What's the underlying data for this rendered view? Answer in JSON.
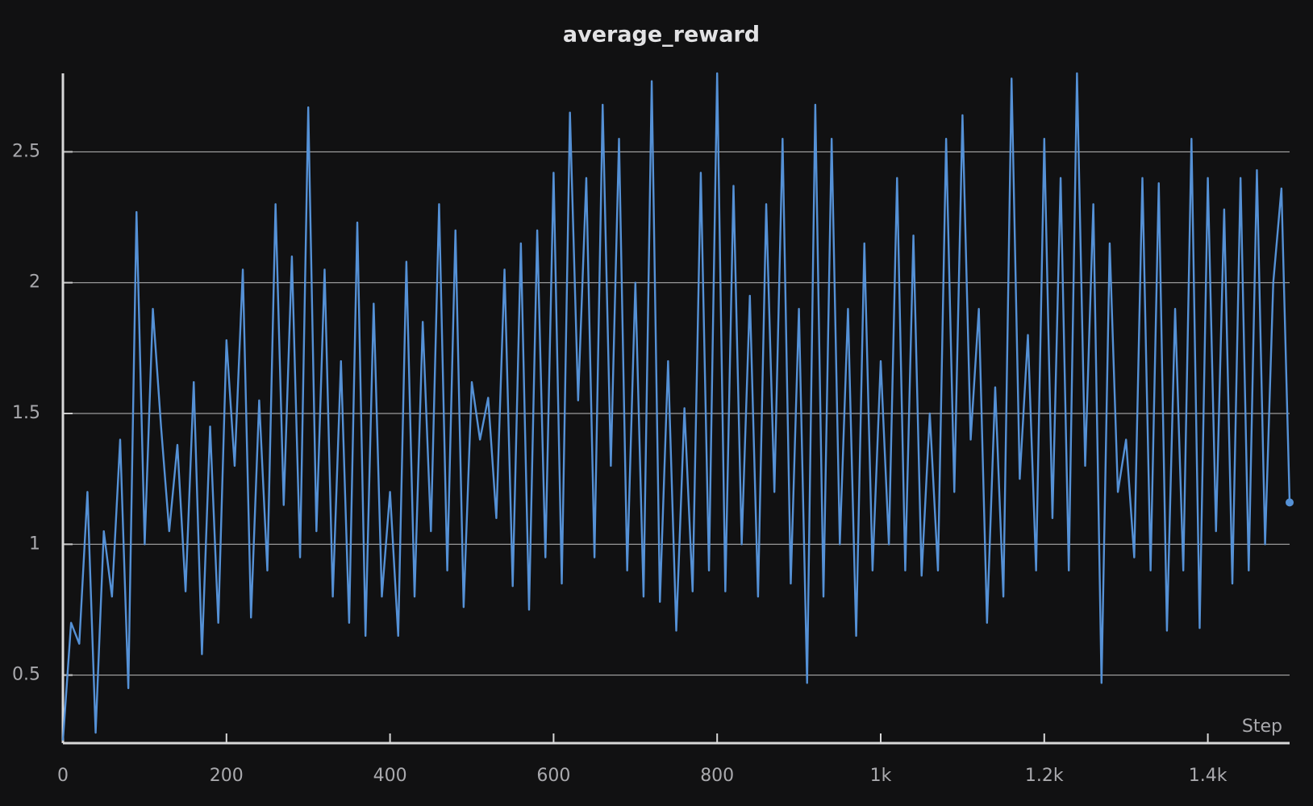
{
  "chart_data": {
    "type": "line",
    "title": "average_reward",
    "x_label": "Step",
    "color": "#5591d6",
    "grid": true,
    "xlim": [
      0,
      1500
    ],
    "ylim": [
      0.24,
      2.8
    ],
    "xticks": [
      0,
      200,
      400,
      600,
      800,
      {
        "value": 1000,
        "label": "1k"
      },
      {
        "value": 1200,
        "label": "1.2k"
      },
      {
        "value": 1400,
        "label": "1.4k"
      }
    ],
    "yticks": [
      0.5,
      1,
      1.5,
      2,
      2.5
    ],
    "x": [
      0,
      10,
      20,
      30,
      40,
      50,
      60,
      70,
      80,
      90,
      100,
      110,
      120,
      130,
      140,
      150,
      160,
      170,
      180,
      190,
      200,
      210,
      220,
      230,
      240,
      250,
      260,
      270,
      280,
      290,
      300,
      310,
      320,
      330,
      340,
      350,
      360,
      370,
      380,
      390,
      400,
      410,
      420,
      430,
      440,
      450,
      460,
      470,
      480,
      490,
      500,
      510,
      520,
      530,
      540,
      550,
      560,
      570,
      580,
      590,
      600,
      610,
      620,
      630,
      640,
      650,
      660,
      670,
      680,
      690,
      700,
      710,
      720,
      730,
      740,
      750,
      760,
      770,
      780,
      790,
      800,
      810,
      820,
      830,
      840,
      850,
      860,
      870,
      880,
      890,
      900,
      910,
      920,
      930,
      940,
      950,
      960,
      970,
      980,
      990,
      1000,
      1010,
      1020,
      1030,
      1040,
      1050,
      1060,
      1070,
      1080,
      1090,
      1100,
      1110,
      1120,
      1130,
      1140,
      1150,
      1160,
      1170,
      1180,
      1190,
      1200,
      1210,
      1220,
      1230,
      1240,
      1250,
      1260,
      1270,
      1280,
      1290,
      1300,
      1310,
      1320,
      1330,
      1340,
      1350,
      1360,
      1370,
      1380,
      1390,
      1400,
      1410,
      1420,
      1430,
      1440,
      1450,
      1460,
      1470,
      1480,
      1490,
      1500
    ],
    "values": [
      0.25,
      0.7,
      0.62,
      1.2,
      0.28,
      1.05,
      0.8,
      1.4,
      0.45,
      2.27,
      1.0,
      1.9,
      1.45,
      1.05,
      1.38,
      0.82,
      1.62,
      0.58,
      1.45,
      0.7,
      1.78,
      1.3,
      2.05,
      0.72,
      1.55,
      0.9,
      2.3,
      1.15,
      2.1,
      0.95,
      2.67,
      1.05,
      2.05,
      0.8,
      1.7,
      0.7,
      2.23,
      0.65,
      1.92,
      0.8,
      1.2,
      0.65,
      2.08,
      0.8,
      1.85,
      1.05,
      2.3,
      0.9,
      2.2,
      0.76,
      1.62,
      1.4,
      1.56,
      1.1,
      2.05,
      0.84,
      2.15,
      0.75,
      2.2,
      0.95,
      2.42,
      0.85,
      2.65,
      1.55,
      2.4,
      0.95,
      2.68,
      1.3,
      2.55,
      0.9,
      2.0,
      0.8,
      2.77,
      0.78,
      1.7,
      0.67,
      1.52,
      0.82,
      2.42,
      0.9,
      2.8,
      0.82,
      2.37,
      1.0,
      1.95,
      0.8,
      2.3,
      1.2,
      2.55,
      0.85,
      1.9,
      0.47,
      2.68,
      0.8,
      2.55,
      1.0,
      1.9,
      0.65,
      2.15,
      0.9,
      1.7,
      1.0,
      2.4,
      0.9,
      2.18,
      0.88,
      1.5,
      0.9,
      2.55,
      1.2,
      2.64,
      1.4,
      1.9,
      0.7,
      1.6,
      0.8,
      2.78,
      1.25,
      1.8,
      0.9,
      2.55,
      1.1,
      2.4,
      0.9,
      2.8,
      1.3,
      2.3,
      0.47,
      2.15,
      1.2,
      1.4,
      0.95,
      2.4,
      0.9,
      2.38,
      0.67,
      1.9,
      0.9,
      2.55,
      0.68,
      2.4,
      1.05,
      2.28,
      0.85,
      2.4,
      0.9,
      2.43,
      1.0,
      2.0,
      2.36,
      1.16
    ]
  }
}
